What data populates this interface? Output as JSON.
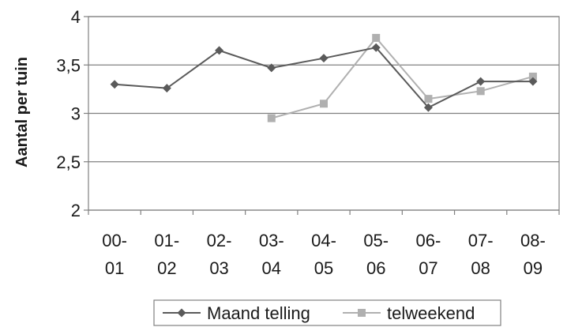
{
  "chart_data": {
    "type": "line",
    "ylabel": "Aantal per tuin",
    "xlabel": "",
    "ylim": [
      2,
      4
    ],
    "yticks": [
      "2",
      "2,5",
      "3",
      "3,5",
      "4"
    ],
    "ytick_values": [
      2,
      2.5,
      3,
      3.5,
      4
    ],
    "categories": [
      [
        "00-",
        "01"
      ],
      [
        "01-",
        "02"
      ],
      [
        "02-",
        "03"
      ],
      [
        "03-",
        "04"
      ],
      [
        "04-",
        "05"
      ],
      [
        "05-",
        "06"
      ],
      [
        "06-",
        "07"
      ],
      [
        "07-",
        "08"
      ],
      [
        "08-",
        "09"
      ]
    ],
    "grid": "horizontal",
    "legend_position": "bottom",
    "series": [
      {
        "name": "Maand telling",
        "color": "#5a5a5a",
        "marker": "diamond",
        "values": [
          3.3,
          3.26,
          3.65,
          3.47,
          3.57,
          3.68,
          3.06,
          3.33,
          3.33
        ]
      },
      {
        "name": "telweekend",
        "color": "#b0b0b0",
        "marker": "square",
        "values": [
          null,
          null,
          null,
          2.95,
          3.1,
          3.78,
          3.15,
          3.23,
          3.38
        ]
      }
    ]
  }
}
